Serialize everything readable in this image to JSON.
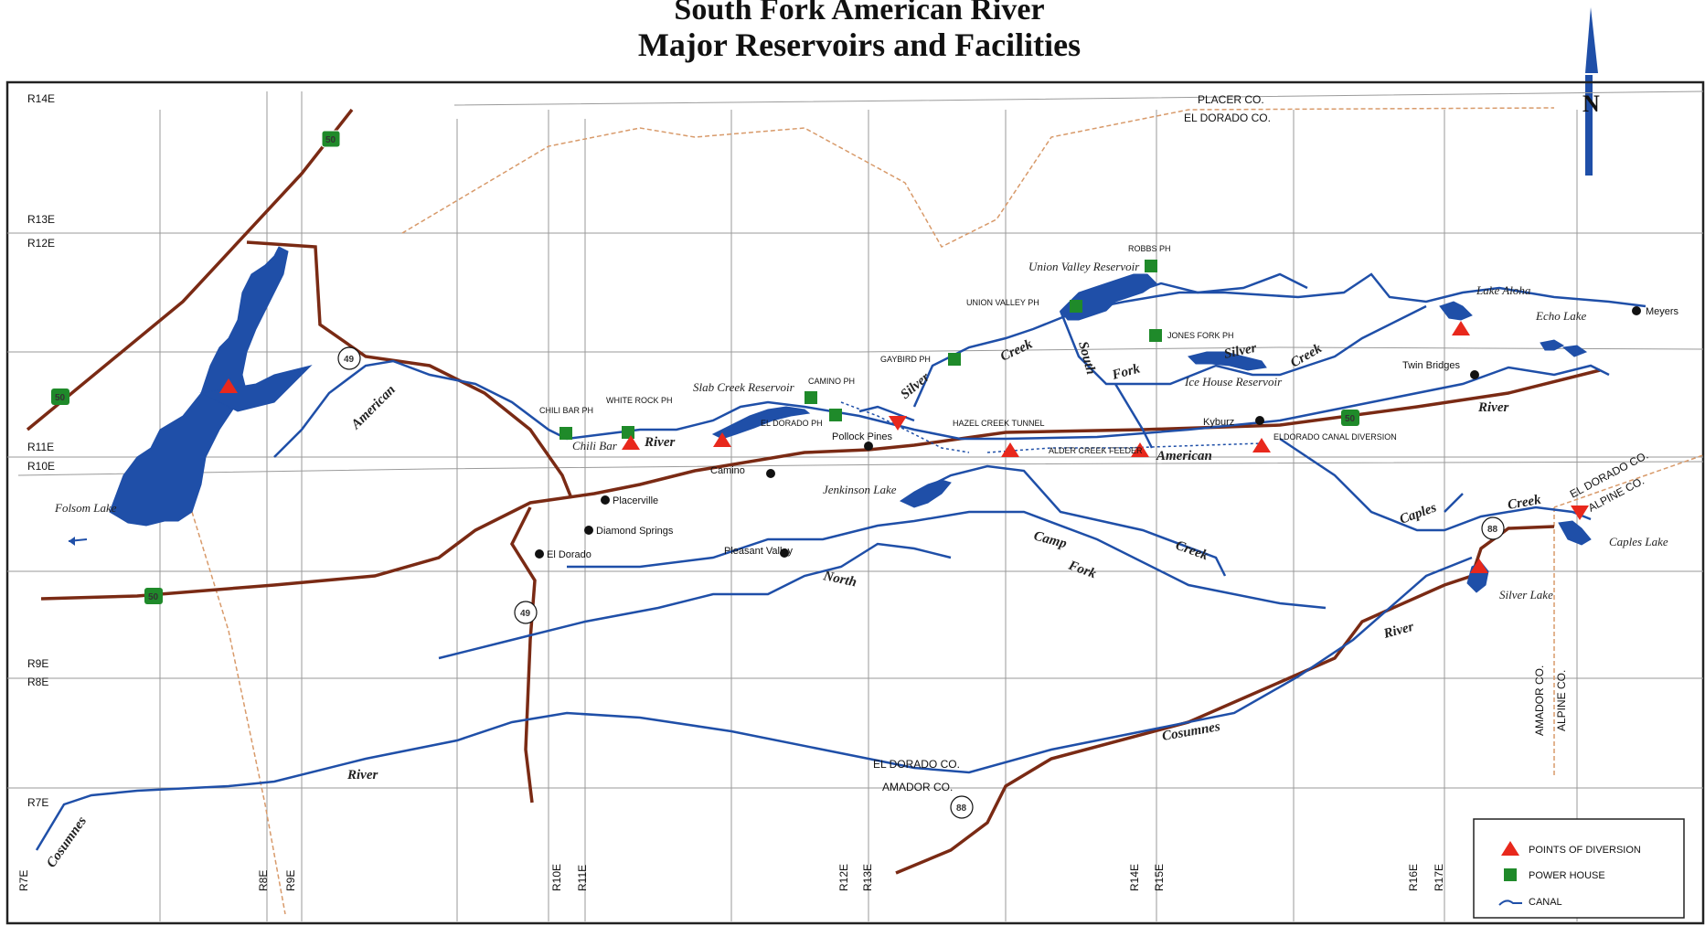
{
  "title": {
    "line1": "South Fork American River",
    "line2": "Major Reservoirs and Facilities"
  },
  "north_arrow": {
    "label": "N"
  },
  "ranges": {
    "r14e": "R14E",
    "r13e": "R13E",
    "r12e": "R12E",
    "r11e": "R11E",
    "r10e": "R10E",
    "r9e": "R9E",
    "r8e": "R8E",
    "r7e": "R7E",
    "b_r7e": "R7E",
    "b_r8e": "R8E",
    "b_r9e": "R9E",
    "b_r10e": "R10E",
    "b_r11e": "R11E",
    "b_r12e": "R12E",
    "b_r13e": "R13E",
    "b_r14e": "R14E",
    "b_r15e": "R15E",
    "b_r16e": "R16E",
    "b_r17e": "R17E"
  },
  "counties": {
    "placer": "PLACER CO.",
    "eldorado_top": "EL DORADO CO.",
    "eldorado_bottom": "EL DORADO CO.",
    "amador_bottom": "AMADOR CO.",
    "eldorado_right": "EL DORADO CO.",
    "alpine_right": "ALPINE CO.",
    "amador_vert": "AMADOR CO.",
    "alpine_vert": "ALPINE CO."
  },
  "water": {
    "folsom": "Folsom Lake",
    "american_left": "American",
    "chili_bar": "Chili Bar",
    "river_chili": "River",
    "slab_creek": "Slab Creek Reservoir",
    "union_valley": "Union Valley Reservoir",
    "silver_creek1": "Silver",
    "silver_creek2": "Creek",
    "south_fork1": "South",
    "south_fork2": "Fork",
    "silver_creek3": "Silver",
    "silver_creek4": "Creek",
    "ice_house": "Ice House Reservoir",
    "american_mid": "American",
    "river_right": "River",
    "lake_aloha": "Lake Aloha",
    "echo_lake": "Echo Lake",
    "jenkinson": "Jenkinson Lake",
    "camp": "Camp",
    "camp_creek": "Creek",
    "fork": "Fork",
    "north": "North",
    "caples": "Caples",
    "caples_creek": "Creek",
    "caples_lake": "Caples Lake",
    "silver_lake": "Silver Lake",
    "cosumnes_river": "River",
    "cosumnes_mid": "Cosumnes",
    "river_lower": "River",
    "cosumnes_left": "Cosumnes"
  },
  "facilities": {
    "robbs": "ROBBS PH",
    "union_valley_ph": "UNION VALLEY PH",
    "jones_fork": "JONES FORK PH",
    "gaybird": "GAYBIRD PH",
    "camino_ph": "CAMINO PH",
    "chili_bar_ph": "CHILI BAR PH",
    "white_rock": "WHITE ROCK PH",
    "el_dorado_ph": "EL DORADO PH",
    "hazel_creek": "HAZEL CREEK TUNNEL",
    "alder_creek": "ALDER CREEK FEEDER",
    "eldorado_canal": "ELDORADO CANAL DIVERSION"
  },
  "places": {
    "meyers": "Meyers",
    "twin_bridges": "Twin Bridges",
    "kyburz": "Kyburz",
    "pollock": "Pollock Pines",
    "camino": "Camino",
    "placerville": "Placerville",
    "diamond": "Diamond Springs",
    "el_dorado": "El Dorado",
    "pleasant": "Pleasant Valley"
  },
  "highways": {
    "h50a": "50",
    "h50b": "50",
    "h50c": "50",
    "h50d": "50",
    "h49a": "49",
    "h49b": "49",
    "h88a": "88",
    "h88b": "88"
  },
  "legend": {
    "diversion": "POINTS OF DIVERSION",
    "powerhouse": "POWER HOUSE",
    "canal": "CANAL"
  },
  "colors": {
    "water": "#1f4fa8",
    "highway": "#7a2a14",
    "diversion": "#e8281c",
    "powerhouse": "#1f8a2a",
    "grid": "#9a9a9a",
    "county_line": "#d89a6a"
  }
}
